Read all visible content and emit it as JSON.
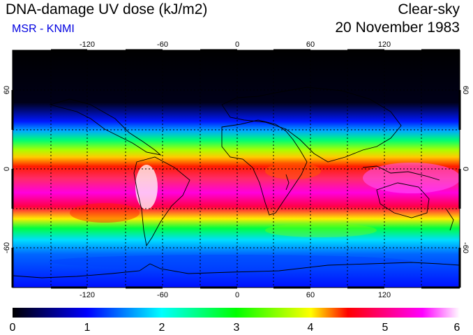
{
  "header": {
    "title": "DNA-damage UV dose (kJ/m2)",
    "subtitle": "MSR - KNMI",
    "condition": "Clear-sky",
    "date": "20 November 1983"
  },
  "map": {
    "lon_ticks": [
      "-120",
      "-60",
      "0",
      "60",
      "120"
    ],
    "lat_ticks_left": [
      "60",
      "0",
      "-60"
    ],
    "lat_ticks_right": [
      "60",
      "0",
      "-60"
    ],
    "projection": "equirectangular",
    "grid": "dotted 30°"
  },
  "colorbar": {
    "labels": [
      "0",
      "1",
      "2",
      "3",
      "4",
      "5",
      "6"
    ],
    "stops": [
      "#000000",
      "#0000ff",
      "#00ffff",
      "#00ff00",
      "#ffff00",
      "#ff0000",
      "#ff00ff",
      "#ffffff"
    ]
  },
  "colors": {
    "subtitle": "#0000e0"
  }
}
